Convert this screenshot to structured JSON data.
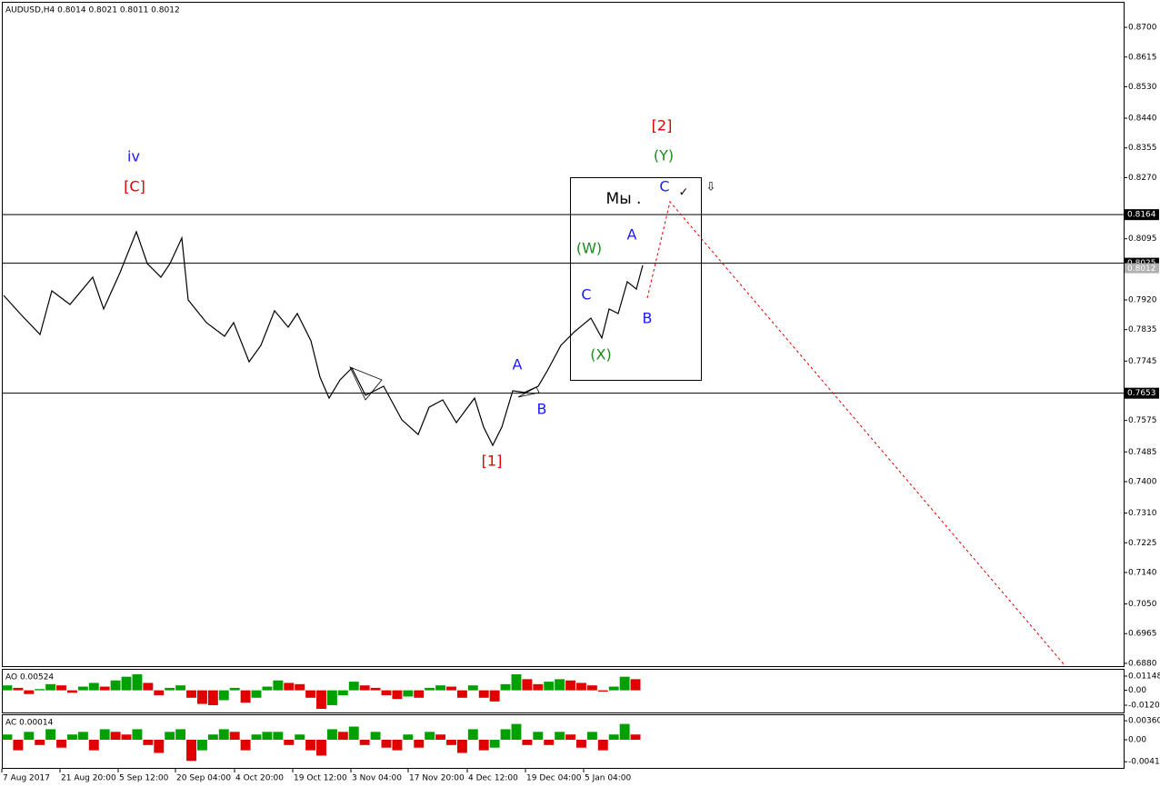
{
  "chart_data": [
    {
      "type": "line",
      "title": "AUDUSD,H4  0.8014 0.8021 0.8011 0.8012",
      "x": [
        2,
        20,
        42,
        55,
        75,
        100,
        112,
        130,
        148,
        160,
        175,
        185,
        198,
        205,
        225,
        245,
        255,
        272,
        285,
        300,
        315,
        325,
        340,
        350,
        360,
        372,
        385,
        400,
        420,
        440,
        458,
        470,
        485,
        500,
        520,
        530,
        540,
        550,
        562,
        575,
        590,
        600,
        615,
        630,
        648,
        660,
        668,
        678,
        688,
        698,
        705
      ],
      "series": [
        {
          "color": "#000000",
          "values": [
            0.7933,
            0.7881,
            0.7821,
            0.7946,
            0.7907,
            0.7985,
            0.7894,
            0.7998,
            0.8115,
            0.8024,
            0.7985,
            0.8024,
            0.8097,
            0.792,
            0.7855,
            0.7816,
            0.7855,
            0.7743,
            0.779,
            0.7889,
            0.7842,
            0.7881,
            0.7803,
            0.7699,
            0.7639,
            0.7691,
            0.7725,
            0.7647,
            0.7673,
            0.7577,
            0.7535,
            0.7613,
            0.7634,
            0.7569,
            0.7639,
            0.7556,
            0.7504,
            0.7556,
            0.766,
            0.7655,
            0.7673,
            0.7717,
            0.779,
            0.7829,
            0.7868,
            0.7811,
            0.7894,
            0.7881,
            0.7972,
            0.7951,
            0.8019
          ]
        },
        {
          "color": "#e00000",
          "dashed": true,
          "x": [
            710,
            735,
            1170
          ],
          "values": [
            0.7925,
            0.8201,
            0.6872
          ]
        }
      ],
      "levels": [
        {
          "value": 0.8164,
          "label": "0.8164"
        },
        {
          "value": 0.8025,
          "label": "0.8025"
        },
        {
          "value": 0.7653,
          "label": "0.7653"
        }
      ],
      "last_price": {
        "value": 0.8012,
        "label": "0.8012"
      },
      "annotations": [
        {
          "text": "iv",
          "color": "#1a1aff"
        },
        {
          "text": "[C]",
          "color": "#e00000"
        },
        {
          "text": "[1]",
          "color": "#e00000"
        },
        {
          "text": "A",
          "color": "#1a1aff"
        },
        {
          "text": "B",
          "color": "#1a1aff"
        },
        {
          "text": "(W)",
          "color": "#1a8a1a"
        },
        {
          "text": "C",
          "color": "#1a1aff"
        },
        {
          "text": "(X)",
          "color": "#1a8a1a"
        },
        {
          "text": "A",
          "color": "#1a1aff"
        },
        {
          "text": "B",
          "color": "#1a1aff"
        },
        {
          "text": "[2]",
          "color": "#e00000"
        },
        {
          "text": "(Y)",
          "color": "#1a8a1a"
        },
        {
          "text": "C",
          "color": "#1a1aff"
        },
        {
          "text": "Мы .",
          "color": "#000000"
        },
        {
          "text": "✓",
          "color": "#000000"
        },
        {
          "text": "⇩",
          "color": "#000000"
        }
      ],
      "xlim": [
        0,
        1234
      ],
      "ylim": [
        0.6872,
        0.8773
      ],
      "xticks": [
        {
          "value": 0,
          "label": "7 Aug 2017"
        },
        {
          "value": 64,
          "label": "21 Aug 20:00"
        },
        {
          "value": 128,
          "label": "5 Sep 12:00"
        },
        {
          "value": 191,
          "label": "20 Sep 04:00"
        },
        {
          "value": 256,
          "label": "4 Oct 20:00"
        },
        {
          "value": 320,
          "label": "19 Oct 12:00"
        },
        {
          "value": 384,
          "label": "3 Nov 04:00"
        },
        {
          "value": 447,
          "label": "17 Nov 20:00"
        },
        {
          "value": 512,
          "label": "4 Dec 12:00"
        },
        {
          "value": 576,
          "label": "19 Dec 04:00"
        },
        {
          "value": 640,
          "label": "5 Jan 04:00"
        }
      ],
      "yticks": [
        {
          "value": 0.87,
          "label": "0.8700"
        },
        {
          "value": 0.8615,
          "label": "0.8615"
        },
        {
          "value": 0.853,
          "label": "0.8530"
        },
        {
          "value": 0.844,
          "label": "0.8440"
        },
        {
          "value": 0.8355,
          "label": "0.8355"
        },
        {
          "value": 0.827,
          "label": "0.8270"
        },
        {
          "value": 0.8095,
          "label": "0.8095"
        },
        {
          "value": 0.792,
          "label": "0.7920"
        },
        {
          "value": 0.7835,
          "label": "0.7835"
        },
        {
          "value": 0.7745,
          "label": "0.7745"
        },
        {
          "value": 0.7575,
          "label": "0.7575"
        },
        {
          "value": 0.7485,
          "label": "0.7485"
        },
        {
          "value": 0.74,
          "label": "0.7400"
        },
        {
          "value": 0.731,
          "label": "0.7310"
        },
        {
          "value": 0.7225,
          "label": "0.7225"
        },
        {
          "value": 0.714,
          "label": "0.7140"
        },
        {
          "value": 0.705,
          "label": "0.7050"
        },
        {
          "value": 0.6965,
          "label": "0.6965"
        },
        {
          "value": 0.688,
          "label": "0.6880"
        }
      ]
    },
    {
      "type": "bar",
      "title": "AO 0.00524",
      "up_color": "#00a000",
      "down_color": "#e00000",
      "values": [
        0.004,
        0.002,
        -0.003,
        0.001,
        0.005,
        0.004,
        -0.002,
        0.003,
        0.006,
        0.003,
        0.008,
        0.011,
        0.013,
        0.006,
        -0.004,
        0.002,
        0.004,
        -0.006,
        -0.011,
        -0.012,
        -0.008,
        0.002,
        -0.01,
        -0.006,
        0.003,
        0.008,
        0.006,
        0.005,
        -0.006,
        -0.015,
        -0.012,
        -0.004,
        0.007,
        0.004,
        0.002,
        -0.004,
        -0.007,
        -0.005,
        -0.006,
        0.002,
        0.004,
        0.003,
        -0.006,
        0.004,
        -0.006,
        -0.009,
        0.005,
        0.013,
        0.009,
        0.005,
        0.007,
        0.009,
        0.008,
        0.006,
        0.004,
        -0.001,
        0.003,
        0.011,
        0.009
      ],
      "ylim": [
        -0.01792,
        0.01736
      ],
      "yticks": [
        {
          "value": 0.01148,
          "label": "0.01148"
        },
        {
          "value": 0,
          "label": "0.00"
        },
        {
          "value": -0.01204,
          "label": "-0.01204"
        }
      ]
    },
    {
      "type": "bar",
      "title": "AC 0.00014",
      "up_color": "#00a000",
      "down_color": "#e00000",
      "values": [
        0.001,
        -0.002,
        0.0015,
        -0.001,
        0.002,
        -0.0015,
        0.001,
        0.0015,
        -0.002,
        0.002,
        0.0015,
        0.001,
        0.002,
        -0.001,
        -0.0025,
        0.0015,
        0.002,
        -0.004,
        -0.002,
        0.001,
        0.002,
        0.0015,
        -0.002,
        0.001,
        0.0015,
        0.0015,
        -0.001,
        0.001,
        -0.002,
        -0.003,
        0.002,
        0.0015,
        0.0025,
        -0.001,
        0.0015,
        -0.0015,
        -0.002,
        0.001,
        -0.0015,
        0.0015,
        0.001,
        -0.001,
        -0.0025,
        0.002,
        -0.002,
        -0.0015,
        0.002,
        0.003,
        -0.001,
        0.0015,
        -0.001,
        0.0015,
        0.001,
        -0.0015,
        0.0015,
        -0.002,
        0.001,
        0.003,
        0.001
      ],
      "ylim": [
        -0.00534,
        0.00483
      ],
      "yticks": [
        {
          "value": 0.0036,
          "label": "0.00360"
        },
        {
          "value": 0,
          "label": "0.00"
        },
        {
          "value": -0.00417,
          "label": "-0.00417"
        }
      ]
    }
  ]
}
